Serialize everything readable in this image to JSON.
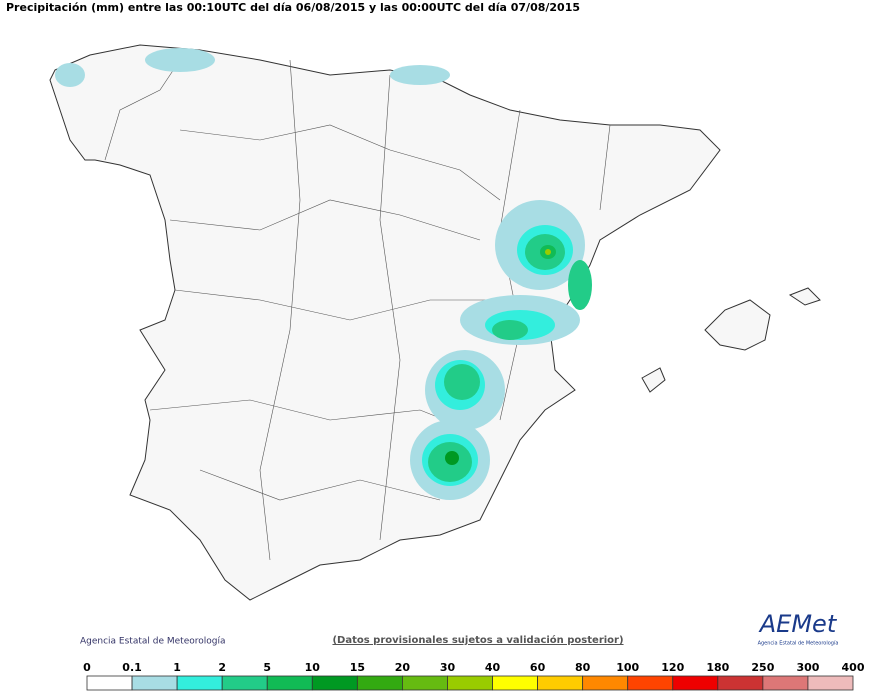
{
  "header": {
    "title": "Precipitación (mm) entre las 00:10UTC del día 06/08/2015 y las 00:00UTC del día 07/08/2015"
  },
  "footer": {
    "credit": "Agencia Estatal de Meteorología",
    "note": "(Datos provisionales sujetos a validación posterior)",
    "logo": "AEMet",
    "logo_subtitle": "Agencia Estatal de Meteorología"
  },
  "legend": {
    "ticks": [
      0,
      0.1,
      1,
      2,
      5,
      10,
      15,
      20,
      30,
      40,
      60,
      80,
      100,
      120,
      180,
      250,
      300,
      400
    ],
    "colors": [
      "#ffffff",
      "#a8dde4",
      "#33eedd",
      "#22cc88",
      "#11bb55",
      "#009922",
      "#33aa11",
      "#66bb11",
      "#99cc00",
      "#ffff00",
      "#ffcc00",
      "#ff8800",
      "#ff4400",
      "#ee0000",
      "#cc3333",
      "#dd7777",
      "#eebbbb"
    ]
  }
}
